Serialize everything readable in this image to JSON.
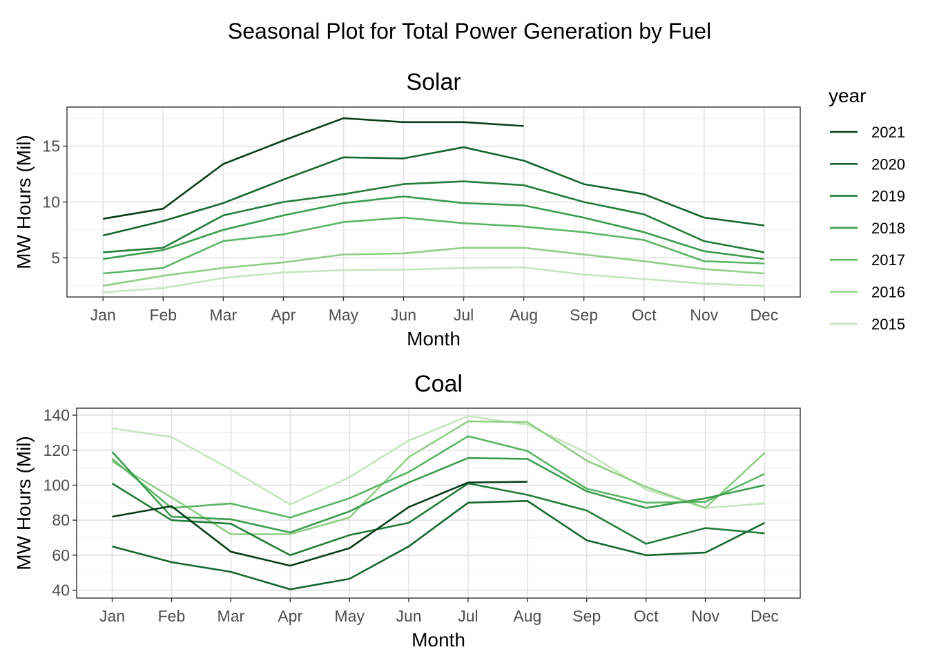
{
  "title": "Seasonal Plot for Total Power Generation by Fuel",
  "legend": {
    "title": "year",
    "items": [
      {
        "label": "2021",
        "color": "#0b3d1a"
      },
      {
        "label": "2020",
        "color": "#14672e"
      },
      {
        "label": "2019",
        "color": "#237c3a"
      },
      {
        "label": "2018",
        "color": "#3a9c4e"
      },
      {
        "label": "2017",
        "color": "#5bb665"
      },
      {
        "label": "2016",
        "color": "#8fcf85"
      },
      {
        "label": "2015",
        "color": "#c4e6bc"
      }
    ]
  },
  "chart_data": [
    {
      "type": "line",
      "title": "Solar",
      "xlabel": "Month",
      "ylabel": "MW Hours (Mil)",
      "categories": [
        "Jan",
        "Feb",
        "Mar",
        "Apr",
        "May",
        "Jun",
        "Jul",
        "Aug",
        "Sep",
        "Oct",
        "Nov",
        "Dec"
      ],
      "ylim": [
        1.5,
        18.5
      ],
      "yticks": [
        5,
        10,
        15
      ],
      "grid": true,
      "series": [
        {
          "name": "2015",
          "values": [
            1.9,
            2.3,
            3.2,
            3.7,
            3.9,
            3.95,
            4.1,
            4.15,
            3.5,
            3.1,
            2.7,
            2.5
          ]
        },
        {
          "name": "2016",
          "values": [
            2.5,
            3.4,
            4.1,
            4.6,
            5.3,
            5.4,
            5.9,
            5.9,
            5.3,
            4.7,
            4.0,
            3.6
          ]
        },
        {
          "name": "2017",
          "values": [
            3.6,
            4.1,
            6.5,
            7.1,
            8.2,
            8.6,
            8.1,
            7.8,
            7.3,
            6.6,
            4.7,
            4.5
          ]
        },
        {
          "name": "2018",
          "values": [
            4.9,
            5.7,
            7.5,
            8.8,
            9.9,
            10.5,
            9.9,
            9.7,
            8.6,
            7.3,
            5.6,
            4.9
          ]
        },
        {
          "name": "2019",
          "values": [
            5.5,
            5.9,
            8.8,
            10.0,
            10.7,
            11.6,
            11.85,
            11.5,
            10.0,
            8.9,
            6.5,
            5.5
          ]
        },
        {
          "name": "2020",
          "values": [
            7.0,
            8.3,
            9.9,
            12.0,
            14.0,
            13.9,
            14.9,
            13.7,
            11.6,
            10.7,
            8.6,
            7.9
          ]
        },
        {
          "name": "2021",
          "values": [
            8.5,
            9.4,
            13.4,
            15.5,
            17.5,
            17.15,
            17.15,
            16.8,
            null,
            null,
            null,
            null
          ]
        }
      ]
    },
    {
      "type": "line",
      "title": "Coal",
      "xlabel": "Month",
      "ylabel": "MW Hours (Mil)",
      "categories": [
        "Jan",
        "Feb",
        "Mar",
        "Apr",
        "May",
        "Jun",
        "Jul",
        "Aug",
        "Sep",
        "Oct",
        "Nov",
        "Dec"
      ],
      "ylim": [
        35.5,
        144
      ],
      "yticks": [
        40,
        60,
        80,
        100,
        120,
        140
      ],
      "grid": true,
      "series": [
        {
          "name": "2015",
          "values": [
            132.5,
            127.5,
            109.0,
            89.0,
            104.5,
            125.5,
            139.5,
            134.5,
            118.5,
            97.5,
            87.0,
            89.5
          ]
        },
        {
          "name": "2016",
          "values": [
            113.5,
            93.0,
            72.0,
            72.0,
            81.5,
            116.0,
            136.5,
            136.0,
            114.0,
            99.0,
            87.0,
            118.5
          ]
        },
        {
          "name": "2017",
          "values": [
            115.0,
            87.0,
            89.5,
            81.5,
            92.5,
            107.5,
            128.0,
            119.5,
            98.0,
            90.0,
            90.5,
            106.5
          ]
        },
        {
          "name": "2018",
          "values": [
            119.0,
            82.0,
            80.5,
            73.0,
            85.0,
            101.5,
            115.5,
            115.0,
            96.5,
            87.0,
            92.5,
            100.0
          ]
        },
        {
          "name": "2019",
          "values": [
            101.0,
            80.0,
            78.0,
            60.0,
            71.5,
            78.5,
            101.0,
            94.5,
            85.5,
            66.5,
            75.5,
            72.5
          ]
        },
        {
          "name": "2020",
          "values": [
            65.0,
            56.0,
            50.5,
            40.5,
            46.5,
            65.0,
            90.0,
            91.0,
            68.5,
            60.0,
            61.5,
            78.5
          ]
        },
        {
          "name": "2021",
          "values": [
            82.0,
            88.0,
            62.0,
            54.0,
            64.0,
            87.5,
            101.5,
            102.0,
            null,
            null,
            null,
            null
          ]
        }
      ]
    }
  ]
}
